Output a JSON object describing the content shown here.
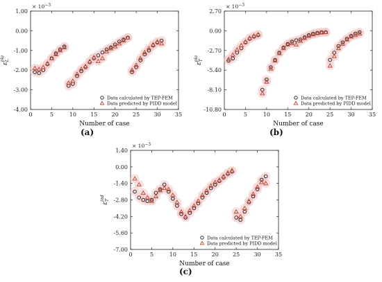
{
  "chart_data": [
    {
      "id": "a",
      "type": "scatter",
      "panel_label": "(a)",
      "xlabel": "Number of case",
      "ylabel": "ε",
      "ylabel_sub": "L",
      "ylabel_sup": "pla",
      "sci": "× 10",
      "sci_exp": "−3",
      "xlim": [
        0,
        35
      ],
      "ylim": [
        -4.0,
        1.0
      ],
      "xticks": [
        "0",
        "5",
        "10",
        "15",
        "20",
        "25",
        "30",
        "35"
      ],
      "xtick_vals": [
        0,
        5,
        10,
        15,
        20,
        25,
        30,
        35
      ],
      "yticks": [
        "-4.00",
        "-3.00",
        "-2.00",
        "-1.00",
        "0.00",
        "1.00"
      ],
      "ytick_vals": [
        -4,
        -3,
        -2,
        -1,
        0,
        1
      ],
      "legend_position": "bottom-right",
      "x": [
        1,
        2,
        3,
        4,
        5,
        6,
        7,
        8,
        9,
        10,
        11,
        12,
        13,
        14,
        15,
        16,
        17,
        18,
        19,
        20,
        21,
        22,
        23,
        24,
        25,
        26,
        27,
        28,
        29,
        30,
        31,
        32
      ],
      "series": [
        {
          "name": "Data calculated by TEP-FEM",
          "marker": "circle",
          "values": [
            -2.1,
            -2.15,
            -2.0,
            -1.7,
            -1.4,
            -1.15,
            -0.95,
            -0.8,
            -2.8,
            -2.7,
            -2.3,
            -2.05,
            -1.85,
            -1.6,
            -1.4,
            -1.25,
            -1.1,
            -0.95,
            -0.85,
            -0.7,
            -0.55,
            -0.45,
            -0.35,
            -2.1,
            -1.85,
            -1.5,
            -1.2,
            -1.0,
            -0.75,
            -0.6,
            -0.5,
            null
          ]
        },
        {
          "name": "Data predicted by PIDD model",
          "marker": "triangle",
          "values": [
            -1.9,
            -1.95,
            -1.85,
            -1.65,
            -1.4,
            -1.2,
            -1.0,
            -0.85,
            -2.65,
            -2.55,
            -2.2,
            -1.95,
            -1.8,
            -1.55,
            -1.35,
            -1.55,
            -1.4,
            -1.05,
            -0.9,
            -0.8,
            -0.65,
            -0.5,
            -0.35,
            -2.0,
            -1.75,
            -1.4,
            -1.1,
            -0.9,
            -0.7,
            -0.55,
            -0.65,
            null
          ]
        }
      ]
    },
    {
      "id": "b",
      "type": "scatter",
      "panel_label": "(b)",
      "xlabel": "Number of case",
      "ylabel": "ε",
      "ylabel_sub": "T",
      "ylabel_sup": "pla",
      "sci": "× 10",
      "sci_exp": "−3",
      "xlim": [
        0,
        35
      ],
      "ylim": [
        -10.8,
        2.7
      ],
      "xticks": [
        "0",
        "5",
        "10",
        "15",
        "20",
        "25",
        "30",
        "35"
      ],
      "xtick_vals": [
        0,
        5,
        10,
        15,
        20,
        25,
        30,
        35
      ],
      "yticks": [
        "-10.80",
        "-8.10",
        "-5.40",
        "-2.70",
        "0.00",
        "2.70"
      ],
      "ytick_vals": [
        -10.8,
        -8.1,
        -5.4,
        -2.7,
        0,
        2.7
      ],
      "legend_position": "bottom-right",
      "x": [
        1,
        2,
        3,
        4,
        5,
        6,
        7,
        8,
        9,
        10,
        11,
        12,
        13,
        14,
        15,
        16,
        17,
        18,
        19,
        20,
        21,
        22,
        23,
        24,
        25,
        26,
        27,
        28,
        29,
        30,
        31,
        32
      ],
      "series": [
        {
          "name": "Data calculated by TEP-FEM",
          "marker": "circle",
          "values": [
            -4.1,
            -3.8,
            -3.0,
            -2.4,
            -1.6,
            -1.1,
            -0.8,
            -0.6,
            -8.1,
            -6.7,
            -5.0,
            -4.0,
            -3.0,
            -2.3,
            -1.8,
            -1.5,
            -1.3,
            -1.2,
            -0.9,
            -0.6,
            -0.4,
            -0.3,
            -0.2,
            -0.2,
            -4.0,
            -3.0,
            -2.1,
            -1.6,
            -1.1,
            -0.7,
            -0.4,
            -0.2
          ]
        },
        {
          "name": "Data predicted by PIDD model",
          "marker": "triangle",
          "values": [
            -3.9,
            -3.3,
            -2.6,
            -2.0,
            -1.5,
            -1.0,
            -0.7,
            -0.5,
            -8.6,
            -7.0,
            -5.2,
            -4.1,
            -3.1,
            -2.4,
            -1.9,
            -1.7,
            -1.9,
            -1.4,
            -1.0,
            -0.7,
            -0.5,
            -0.35,
            -0.25,
            -0.2,
            -4.8,
            -3.5,
            -2.4,
            -1.8,
            -1.2,
            -0.8,
            -0.6,
            -0.4
          ]
        }
      ]
    },
    {
      "id": "c",
      "type": "scatter",
      "panel_label": "(c)",
      "xlabel": "Number of case",
      "ylabel": "ε",
      "ylabel_sub": "T",
      "ylabel_sup": "ind",
      "sci": "× 10",
      "sci_exp": "−3",
      "xlim": [
        0,
        35
      ],
      "ylim": [
        -7.0,
        1.4
      ],
      "xticks": [
        "0",
        "5",
        "10",
        "15",
        "20",
        "25",
        "30",
        "35"
      ],
      "xtick_vals": [
        0,
        5,
        10,
        15,
        20,
        25,
        30,
        35
      ],
      "yticks": [
        "-7.00",
        "-5.60",
        "-4.20",
        "-2.80",
        "-1.40",
        "0.00",
        "1.40"
      ],
      "ytick_vals": [
        -7.0,
        -5.6,
        -4.2,
        -2.8,
        -1.4,
        0,
        1.4
      ],
      "legend_position": "bottom-right",
      "x": [
        1,
        2,
        3,
        4,
        5,
        6,
        7,
        8,
        9,
        10,
        11,
        12,
        13,
        14,
        15,
        16,
        17,
        18,
        19,
        20,
        21,
        22,
        23,
        24,
        25,
        26,
        27,
        28,
        29,
        30,
        31,
        32
      ],
      "series": [
        {
          "name": "Data calculated by TEP-FEM",
          "marker": "circle",
          "values": [
            -2.1,
            -2.6,
            -2.8,
            -2.9,
            -2.8,
            -2.2,
            -1.9,
            -1.5,
            -2.1,
            -2.7,
            -3.3,
            -4.0,
            -4.3,
            -3.9,
            -3.5,
            -3.1,
            -2.6,
            -2.2,
            -1.8,
            -1.5,
            -1.2,
            -0.9,
            -0.6,
            -0.4,
            -4.3,
            -4.5,
            -3.8,
            -3.0,
            -2.5,
            -1.9,
            -1.1,
            -0.8
          ]
        },
        {
          "name": "Data predicted by PIDD model",
          "marker": "triangle",
          "values": [
            -1.0,
            -1.5,
            -2.2,
            -2.6,
            -2.9,
            -2.5,
            -2.0,
            -1.8,
            -1.9,
            -2.4,
            -3.0,
            -3.8,
            -4.2,
            -3.7,
            -3.3,
            -2.9,
            -2.4,
            -2.0,
            -1.6,
            -1.3,
            -1.1,
            -0.8,
            -0.5,
            -0.3,
            -3.8,
            -4.2,
            -3.5,
            -2.9,
            -2.3,
            -1.7,
            -1.3,
            -1.4
          ]
        }
      ]
    }
  ],
  "colors": {
    "circle_stroke": "#1a1a1a",
    "triangle_stroke": "#b8432e",
    "glow": "#f4c8c8",
    "axis": "#222222"
  }
}
